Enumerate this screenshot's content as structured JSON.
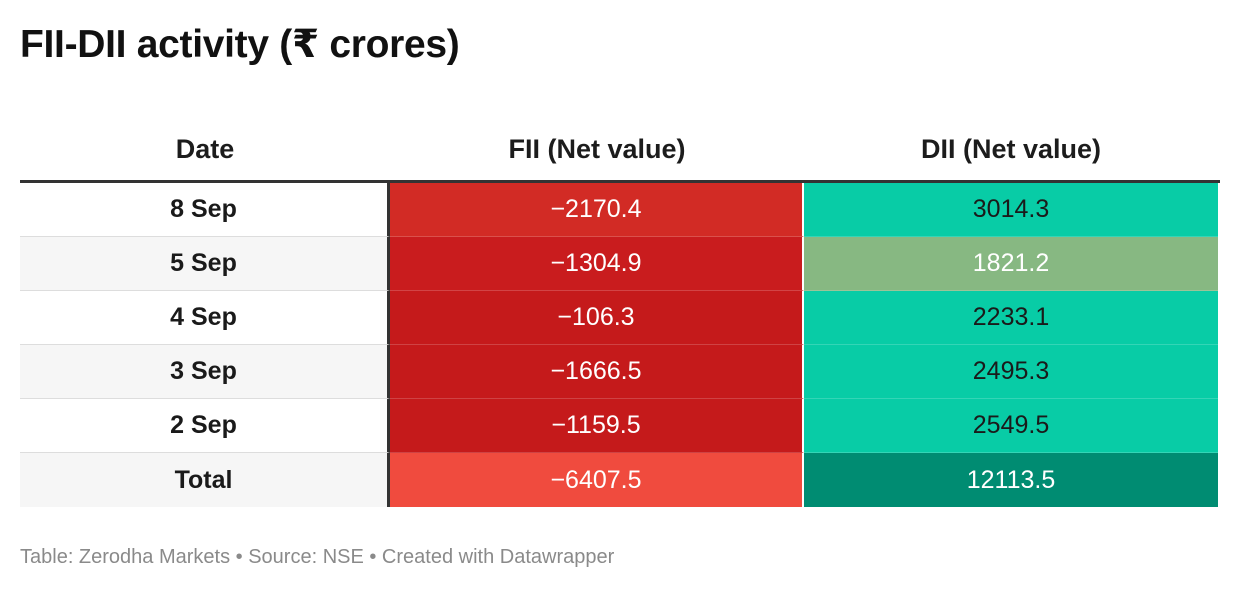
{
  "title": "FII-DII activity (₹ crores)",
  "footer": "Table: Zerodha Markets • Source: NSE • Created with Datawrapper",
  "chart_data": {
    "type": "table",
    "title": "FII-DII activity (₹ crores)",
    "columns": [
      "Date",
      "FII (Net value)",
      "DII (Net value)"
    ],
    "rows": [
      {
        "date": "8 Sep",
        "fii": "−2170.4",
        "dii": "3014.3",
        "fii_color": "#d22b25",
        "dii_color": "#08cca6",
        "fii_text_color": "#ffffff",
        "dii_text_color": "#1a1a1a"
      },
      {
        "date": "5 Sep",
        "fii": "−1304.9",
        "dii": "1821.2",
        "fii_color": "#c91c1e",
        "dii_color": "#87b882",
        "fii_text_color": "#ffffff",
        "dii_text_color": "#ffffff"
      },
      {
        "date": "4 Sep",
        "fii": "−106.3",
        "dii": "2233.1",
        "fii_color": "#c51a1b",
        "dii_color": "#08cca6",
        "fii_text_color": "#ffffff",
        "dii_text_color": "#1a1a1a"
      },
      {
        "date": "3 Sep",
        "fii": "−1666.5",
        "dii": "2495.3",
        "fii_color": "#c51a1b",
        "dii_color": "#08cca6",
        "fii_text_color": "#ffffff",
        "dii_text_color": "#1a1a1a"
      },
      {
        "date": "2 Sep",
        "fii": "−1159.5",
        "dii": "2549.5",
        "fii_color": "#c51a1b",
        "dii_color": "#08cca6",
        "fii_text_color": "#ffffff",
        "dii_text_color": "#1a1a1a"
      },
      {
        "date": "Total",
        "fii": "−6407.5",
        "dii": "12113.5",
        "fii_color": "#f04b3e",
        "dii_color": "#008c72",
        "fii_text_color": "#ffffff",
        "dii_text_color": "#ffffff"
      }
    ]
  }
}
